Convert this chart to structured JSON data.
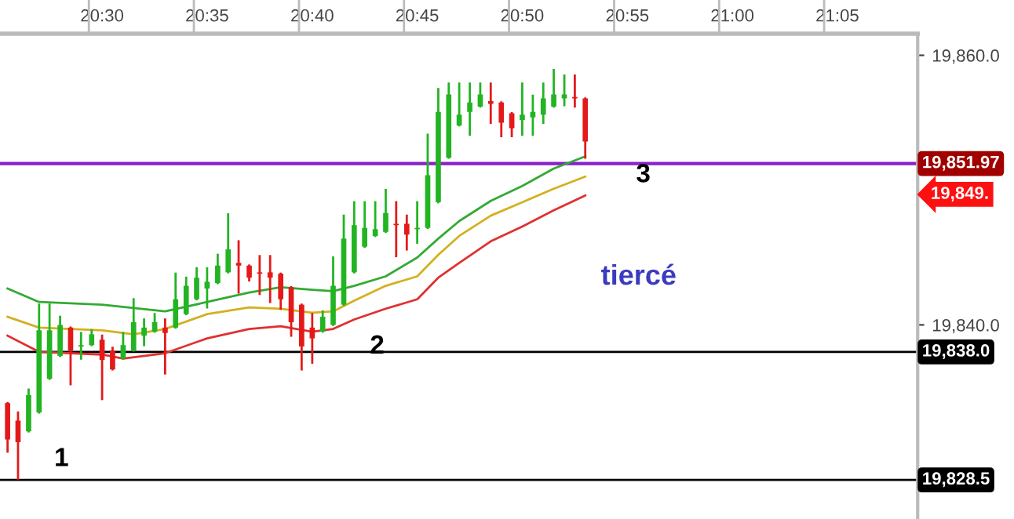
{
  "chart_data": {
    "type": "candlestick",
    "x": [
      20.425,
      20.4333,
      20.4417,
      20.45,
      20.4583,
      20.4667,
      20.475,
      20.4833,
      20.4917,
      20.5,
      20.5083,
      20.5167,
      20.525,
      20.5333,
      20.5417,
      20.55,
      20.5583,
      20.5667,
      20.575,
      20.5833,
      20.5917,
      20.6,
      20.6083,
      20.6167,
      20.625,
      20.6333,
      20.6417,
      20.65,
      20.6583,
      20.6667,
      20.675,
      20.6833,
      20.6917,
      20.7,
      20.7083,
      20.7167,
      20.725,
      20.7333,
      20.7417,
      20.75,
      20.7583,
      20.7667,
      20.775,
      20.7833,
      20.7917,
      20.8,
      20.8083,
      20.8167,
      20.825,
      20.8333,
      20.8417,
      20.85,
      20.8583,
      20.8667,
      20.875,
      20.8833
    ],
    "ohlc": [
      [
        19834.2,
        19834.2,
        19830.6,
        19831.5
      ],
      [
        19832.9,
        19833.5,
        19828.6,
        19831.3
      ],
      [
        19832.1,
        19835.2,
        19832.1,
        19834.8
      ],
      [
        19833.5,
        19841.5,
        19833.5,
        19839.6
      ],
      [
        19836.0,
        19841.5,
        19836.0,
        19839.6
      ],
      [
        19837.7,
        19840.6,
        19837.7,
        19840.0
      ],
      [
        19839.8,
        19839.8,
        19835.6,
        19838.1
      ],
      [
        19838.4,
        19839.4,
        19837.5,
        19838.5
      ],
      [
        19838.5,
        19839.6,
        19838.5,
        19839.3
      ],
      [
        19838.9,
        19839.2,
        19834.5,
        19837.4
      ],
      [
        19838.1,
        19838.3,
        19836.7,
        19836.7
      ],
      [
        19837.5,
        19839.4,
        19837.5,
        19838.5
      ],
      [
        19838.1,
        19841.9,
        19838.1,
        19840.2
      ],
      [
        19839.2,
        19840.4,
        19838.5,
        19839.8
      ],
      [
        19839.5,
        19840.8,
        19839.5,
        19840.2
      ],
      [
        19839.8,
        19840.4,
        19836.4,
        19839.4
      ],
      [
        19839.8,
        19843.8,
        19839.8,
        19841.9
      ],
      [
        19840.8,
        19843.5,
        19840.8,
        19842.9
      ],
      [
        19841.9,
        19844.2,
        19841.9,
        19843.5
      ],
      [
        19842.7,
        19844.2,
        19841.3,
        19843.2
      ],
      [
        19843.1,
        19845.2,
        19843.1,
        19844.4
      ],
      [
        19843.9,
        19848.2,
        19843.9,
        19845.6
      ],
      [
        19844.6,
        19846.2,
        19842.4,
        19844.4
      ],
      [
        19844.4,
        19844.4,
        19843.3,
        19843.5
      ],
      [
        19843.9,
        19845.1,
        19842.3,
        19843.8
      ],
      [
        19843.9,
        19845.1,
        19841.7,
        19843.5
      ],
      [
        19843.8,
        19843.8,
        19841.2,
        19841.9
      ],
      [
        19842.8,
        19842.8,
        19839.2,
        19840.2
      ],
      [
        19841.5,
        19841.5,
        19836.7,
        19838.4
      ],
      [
        19839.8,
        19840.8,
        19837.2,
        19839.0
      ],
      [
        19839.5,
        19841.0,
        19839.5,
        19840.6
      ],
      [
        19840.0,
        19845.0,
        19840.0,
        19842.9
      ],
      [
        19841.5,
        19848.1,
        19841.5,
        19846.4
      ],
      [
        19843.9,
        19849.1,
        19843.9,
        19847.4
      ],
      [
        19845.8,
        19849.1,
        19845.8,
        19847.2
      ],
      [
        19846.6,
        19849.1,
        19846.6,
        19847.1
      ],
      [
        19846.9,
        19850.0,
        19846.9,
        19848.3
      ],
      [
        19847.5,
        19849.1,
        19845.1,
        19847.4
      ],
      [
        19847.5,
        19848.1,
        19845.6,
        19846.7
      ],
      [
        19847.1,
        19849.1,
        19846.1,
        19847.2
      ],
      [
        19847.2,
        19854.1,
        19847.2,
        19851.1
      ],
      [
        19849.1,
        19857.5,
        19849.1,
        19855.8
      ],
      [
        19852.4,
        19857.9,
        19852.4,
        19857.1
      ],
      [
        19854.8,
        19857.9,
        19854.8,
        19855.6
      ],
      [
        19855.8,
        19857.9,
        19854.1,
        19856.5
      ],
      [
        19856.2,
        19857.9,
        19856.2,
        19857.1
      ],
      [
        19856.6,
        19857.9,
        19855.0,
        19856.4
      ],
      [
        19856.5,
        19856.5,
        19854.0,
        19855.0
      ],
      [
        19855.7,
        19855.7,
        19854.0,
        19854.6
      ],
      [
        19855.2,
        19857.9,
        19854.1,
        19855.6
      ],
      [
        19855.4,
        19857.0,
        19854.1,
        19855.8
      ],
      [
        19855.6,
        19857.9,
        19855.0,
        19856.8
      ],
      [
        19856.2,
        19858.9,
        19856.2,
        19857.1
      ],
      [
        19856.8,
        19858.5,
        19856.3,
        19857.1
      ],
      [
        19856.9,
        19858.5,
        19856.2,
        19856.8
      ],
      [
        19856.8,
        19856.8,
        19852.4,
        19853.6
      ]
    ],
    "colors": [
      "#e31a1a",
      "#e31a1a",
      "#22b422",
      "#22b422",
      "#22b422",
      "#22b422",
      "#e31a1a",
      "#22b422",
      "#22b422",
      "#e31a1a",
      "#e31a1a",
      "#22b422",
      "#22b422",
      "#22b422",
      "#22b422",
      "#e31a1a",
      "#22b422",
      "#22b422",
      "#22b422",
      "#22b422",
      "#22b422",
      "#22b422",
      "#e31a1a",
      "#e31a1a",
      "#e31a1a",
      "#e31a1a",
      "#e31a1a",
      "#e31a1a",
      "#e31a1a",
      "#e31a1a",
      "#22b422",
      "#22b422",
      "#22b422",
      "#22b422",
      "#22b422",
      "#22b422",
      "#22b422",
      "#e31a1a",
      "#e31a1a",
      "#22b422",
      "#22b422",
      "#22b422",
      "#22b422",
      "#22b422",
      "#22b422",
      "#22b422",
      "#e31a1a",
      "#e31a1a",
      "#e31a1a",
      "#22b422",
      "#22b422",
      "#22b422",
      "#22b422",
      "#22b422",
      "#e31a1a",
      "#e31a1a"
    ],
    "series": [
      {
        "type": "line",
        "color": "#33aa33",
        "x": [
          20.425,
          20.45,
          20.5,
          20.55,
          20.5833,
          20.6167,
          20.6417,
          20.6667,
          20.6833,
          20.7,
          20.725,
          20.75,
          20.7667,
          20.7833,
          20.8083,
          20.8333,
          20.8583,
          20.8833
        ],
        "values": [
          19842.7,
          19841.7,
          19841.5,
          19841.0,
          19841.7,
          19842.4,
          19842.8,
          19842.6,
          19842.5,
          19842.9,
          19843.6,
          19845.0,
          19846.4,
          19847.7,
          19849.2,
          19850.3,
          19851.6,
          19852.5
        ]
      },
      {
        "type": "line",
        "color": "#d4b020",
        "x": [
          20.425,
          20.45,
          20.5,
          20.525,
          20.55,
          20.5833,
          20.6167,
          20.6417,
          20.6667,
          20.6833,
          20.7,
          20.725,
          20.75,
          20.7667,
          20.7833,
          20.8083,
          20.8333,
          20.8583,
          20.8833
        ],
        "values": [
          19840.6,
          19839.8,
          19839.6,
          19839.3,
          19839.7,
          19840.8,
          19841.3,
          19841.2,
          19840.9,
          19841.0,
          19841.8,
          19842.9,
          19843.6,
          19845.2,
          19846.6,
          19848.1,
          19849.1,
          19850.1,
          19851.0
        ]
      },
      {
        "type": "line",
        "color": "#e03030",
        "x": [
          20.425,
          20.45,
          20.5,
          20.5167,
          20.55,
          20.5833,
          20.6167,
          20.6417,
          20.6667,
          20.6833,
          20.7,
          20.725,
          20.75,
          20.7667,
          20.7833,
          20.8083,
          20.8333,
          20.8583,
          20.8833
        ],
        "values": [
          19839.2,
          19838.0,
          19837.8,
          19837.5,
          19837.9,
          19839.0,
          19839.7,
          19839.9,
          19839.5,
          19839.7,
          19840.4,
          19841.2,
          19841.9,
          19843.5,
          19844.6,
          19846.2,
          19847.3,
          19848.5,
          19849.6
        ]
      }
    ],
    "ref_lines": [
      {
        "axis": "y",
        "value": 19851.97,
        "label": "19,851.97",
        "color": "#8b1fc8"
      },
      {
        "axis": "y",
        "value": 19838.0,
        "label": "19,838.0",
        "color": "#000000"
      },
      {
        "axis": "y",
        "value": 19828.5,
        "label": "19,828.5",
        "color": "#000000"
      }
    ],
    "annotations": [
      "1",
      "2",
      "3",
      "tiercé",
      "19,849."
    ],
    "xlim": [
      20.419,
      21.147
    ],
    "xticks": [
      {
        "value": 20.5,
        "label": "20:30"
      },
      {
        "value": 20.5833,
        "label": "20:35"
      },
      {
        "value": 20.6667,
        "label": "20:40"
      },
      {
        "value": 20.75,
        "label": "20:45"
      },
      {
        "value": 20.8333,
        "label": "20:50"
      },
      {
        "value": 20.9167,
        "label": "20:55"
      },
      {
        "value": 21.0,
        "label": "21:00"
      },
      {
        "value": 21.0833,
        "label": "21:05"
      }
    ],
    "ylim": [
      19825.6,
      19861.6
    ],
    "yticks": [
      {
        "value": 19860,
        "label": "19,860.0"
      },
      {
        "value": 19840,
        "label": "19,840.0"
      }
    ]
  }
}
